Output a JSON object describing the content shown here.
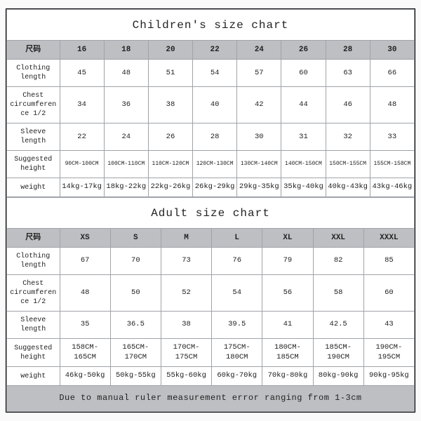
{
  "children": {
    "title": "Children's size chart",
    "header_label": "尺码",
    "sizes": [
      "16",
      "18",
      "20",
      "22",
      "24",
      "26",
      "28",
      "30"
    ],
    "rows": [
      {
        "label": "Clothing length",
        "values": [
          "45",
          "48",
          "51",
          "54",
          "57",
          "60",
          "63",
          "66"
        ]
      },
      {
        "label": "Chest circumference 1/2",
        "values": [
          "34",
          "36",
          "38",
          "40",
          "42",
          "44",
          "46",
          "48"
        ]
      },
      {
        "label": "Sleeve length",
        "values": [
          "22",
          "24",
          "26",
          "28",
          "30",
          "31",
          "32",
          "33"
        ]
      },
      {
        "label": "Suggested height",
        "values": [
          "90CM-100CM",
          "100CM-110CM",
          "110CM-120CM",
          "120CM-130CM",
          "130CM-140CM",
          "140CM-150CM",
          "150CM-155CM",
          "155CM-158CM"
        ],
        "small": true
      },
      {
        "label": "weight",
        "values": [
          "14kg-17kg",
          "18kg-22kg",
          "22kg-26kg",
          "26kg-29kg",
          "29kg-35kg",
          "35kg-40kg",
          "40kg-43kg",
          "43kg-46kg"
        ]
      }
    ]
  },
  "adult": {
    "title": "Adult size chart",
    "header_label": "尺码",
    "sizes": [
      "XS",
      "S",
      "M",
      "L",
      "XL",
      "XXL",
      "XXXL"
    ],
    "rows": [
      {
        "label": "Clothing length",
        "values": [
          "67",
          "70",
          "73",
          "76",
          "79",
          "82",
          "85"
        ]
      },
      {
        "label": "Chest circumference 1/2",
        "values": [
          "48",
          "50",
          "52",
          "54",
          "56",
          "58",
          "60"
        ]
      },
      {
        "label": "Sleeve length",
        "values": [
          "35",
          "36.5",
          "38",
          "39.5",
          "41",
          "42.5",
          "43"
        ]
      },
      {
        "label": "Suggested height",
        "values": [
          "158CM-165CM",
          "165CM-170CM",
          "170CM-175CM",
          "175CM-180CM",
          "180CM-185CM",
          "185CM-190CM",
          "190CM-195CM"
        ]
      },
      {
        "label": "weight",
        "values": [
          "46kg-50kg",
          "50kg-55kg",
          "55kg-60kg",
          "60kg-70kg",
          "70kg-80kg",
          "80kg-90kg",
          "90kg-95kg"
        ]
      }
    ],
    "note": "Due to manual ruler measurement error ranging from 1-3cm"
  },
  "style": {
    "header_bg": "#bdbfc2",
    "border_color": "#9fa3a8",
    "outer_border": "#222",
    "title_fontsize": 16,
    "cell_fontsize": 10.5,
    "small_fontsize": 8
  }
}
